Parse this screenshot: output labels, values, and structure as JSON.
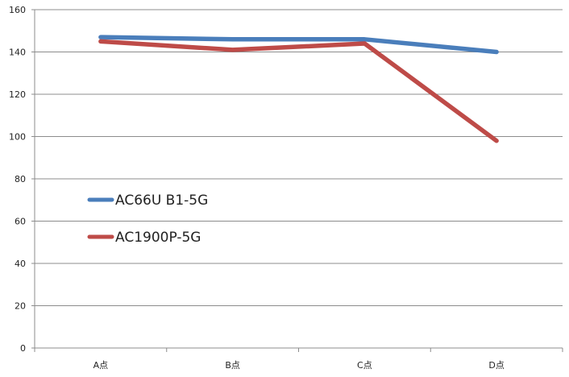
{
  "chart_data": {
    "type": "line",
    "categories": [
      "A点",
      "B点",
      "C点",
      "D点"
    ],
    "series": [
      {
        "name": "AC66U B1-5G",
        "values": [
          147,
          146,
          146,
          140
        ],
        "color": "#4a7ebb"
      },
      {
        "name": "AC1900P-5G",
        "values": [
          145,
          141,
          144,
          98
        ],
        "color": "#be4b48"
      }
    ],
    "title": "",
    "xlabel": "",
    "ylabel": "",
    "ylim": [
      0,
      160
    ],
    "yticks": [
      0,
      20,
      40,
      60,
      80,
      100,
      120,
      140,
      160
    ],
    "grid": true,
    "legend_position": "center-left"
  }
}
